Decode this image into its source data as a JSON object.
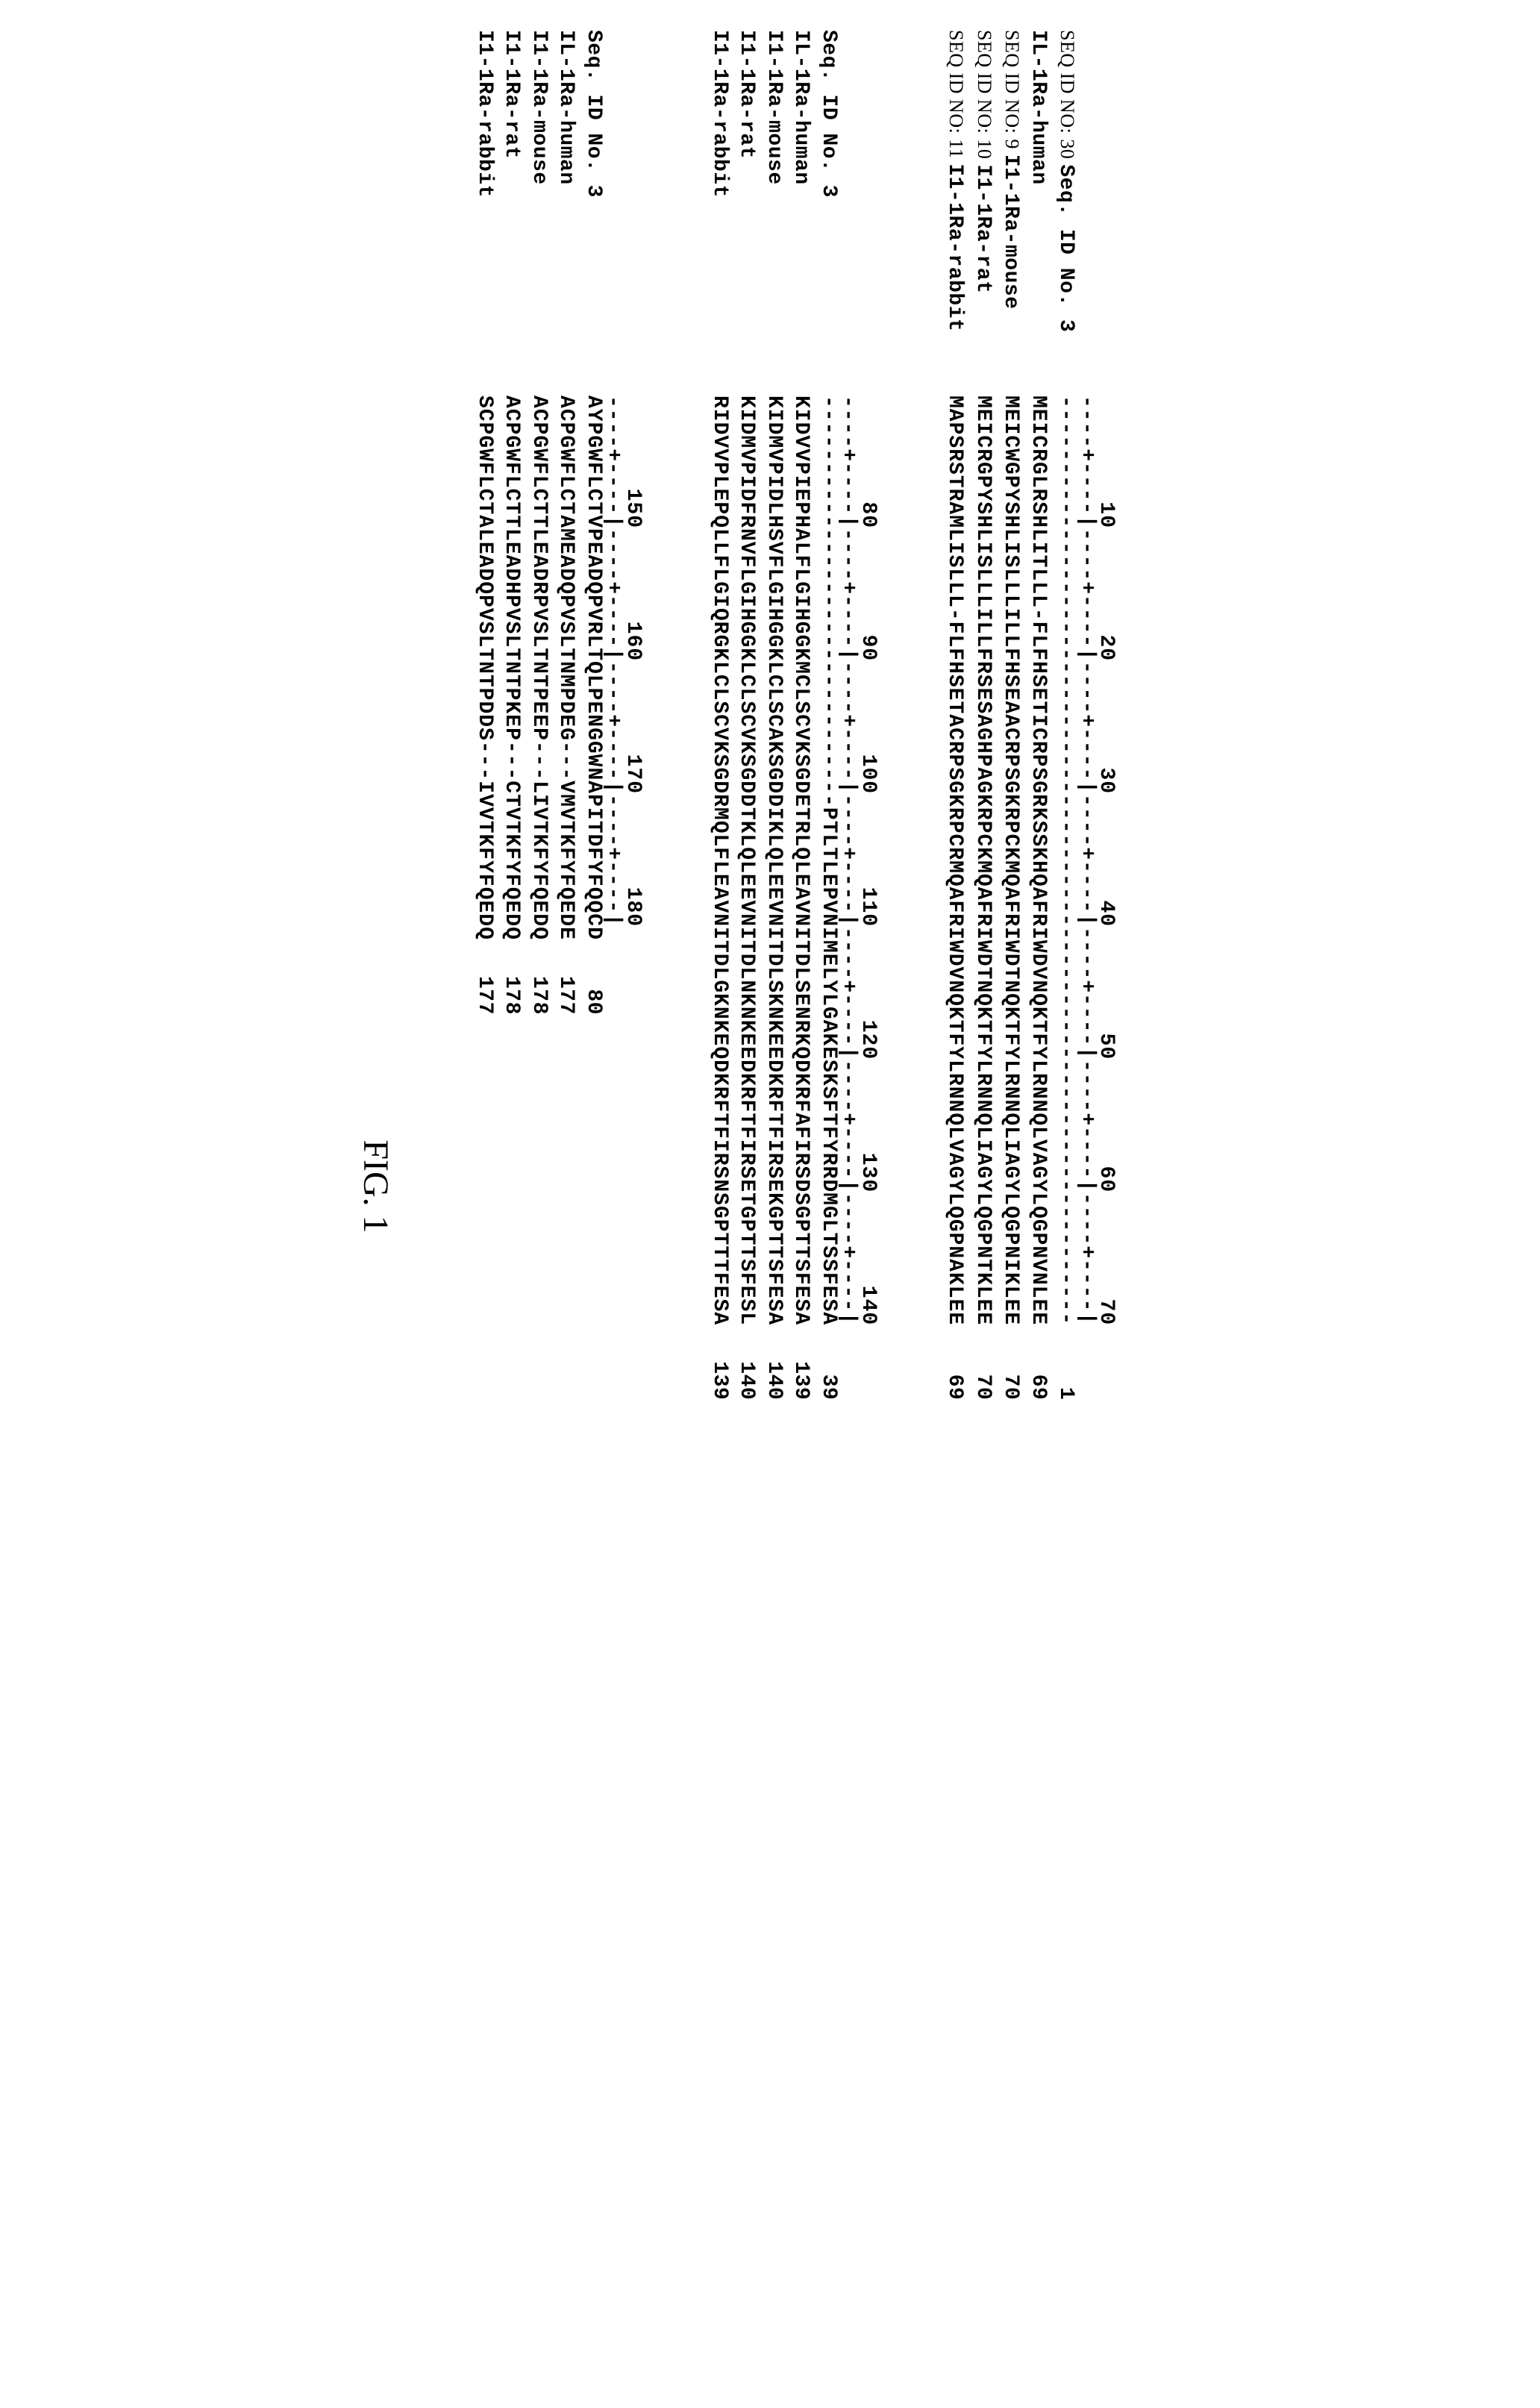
{
  "figure_label": "FIG. 1",
  "blocks": [
    {
      "ruler_numbers": "        10        20        30        40        50        60        70",
      "ruler_ticks": "----+----|----+----|----+----|----+----|----+----|----+----|----+----|",
      "rows": [
        {
          "label_prefix": "SEQ ID NO: 30",
          "label": "Seq. ID No. 3",
          "seq": "----------------------------------------------------------------------",
          "end": "1"
        },
        {
          "label_prefix": "",
          "label": "IL-1Ra-human",
          "seq": "MEICRGLRSHLITLLL-FLFHSETICRPSGRKSSKHQAFRIWDVNQKTFYLRNNQLVAGYLQGPNVNLEE",
          "end": "69"
        },
        {
          "label_prefix": "SEQ ID NO: 9",
          "label": "I1-1Ra-mouse",
          "seq": "MEICWGPYSHLISLLLILLFHSEAACRPSGKRPCKMQAFRIWDTNQKTFYLRNNQLIAGYLQGPNIKLEE",
          "end": "70"
        },
        {
          "label_prefix": "SEQ ID NO: 10",
          "label": "I1-1Ra-rat",
          "seq": "MEICRGPYSHLISLLLILLFRSESAGHPAGKRPCKMQAFRIWDTNQKTFYLRNNQLIAGYLQGPNTKLEE",
          "end": "70"
        },
        {
          "label_prefix": "SEQ ID NO: 11",
          "label": "I1-1Ra-rabbit",
          "seq": "MAPSRSTRAMLISLLL-FLFHSETACRPSGKRPCRMQAFRIWDVNQKTFYLRNNQLVAGYLQGPNAKLEE",
          "end": "69"
        }
      ]
    },
    {
      "ruler_numbers": "        80        90       100       110       120       130       140",
      "ruler_ticks": "----+----|----+----|----+----|----+----|----+----|----+----|----+----|",
      "rows": [
        {
          "label_prefix": "",
          "label": "Seq. ID No. 3",
          "seq": "-------------------------------PTLTLEPVNIMELYLGAKESKSFTFYRRDMGLTSSFESA",
          "end": "39"
        },
        {
          "label_prefix": "",
          "label": "IL-1Ra-human",
          "seq": "KIDVVPIEPHALFLGIHGGKMCLSCVKSGDETRLQLEAVNITDLSENRKQDKRFAFIRSDSGPTTSFESA",
          "end": "139"
        },
        {
          "label_prefix": "",
          "label": "I1-1Ra-mouse",
          "seq": "KIDMVPIDLHSVFLGIHGGKLCLSCAKSGDDIKLQLEEVNITDLSKNKEEDKRFTFIRSEKGPTTSFESA",
          "end": "140"
        },
        {
          "label_prefix": "",
          "label": "I1-1Ra-rat",
          "seq": "KIDMVPIDFRNVFLGIHGGKLCLSCVKSGDDTKLQLEEVNITDLNKNKEEDKRFTFIRSETGPTTSFESL",
          "end": "140"
        },
        {
          "label_prefix": "",
          "label": "I1-1Ra-rabbit",
          "seq": "RIDVVPLEPQLLFLGIQRGKLCLSCVKSGDRMQLFLEAVNITDLGKNKEQDKRFTFIRSNSGPTTTFESA",
          "end": "139"
        }
      ]
    },
    {
      "ruler_numbers": "       150       160       170       180",
      "ruler_ticks": "----+----|----+----|----+----|----+----|",
      "rows": [
        {
          "label_prefix": "",
          "label": "Seq. ID No. 3",
          "seq": "AYPGWFLCTVPEADQPVRLTQLPENGGWNAPITDFYFQQCD",
          "end": "80"
        },
        {
          "label_prefix": "",
          "label": "IL-1Ra-human",
          "seq": "ACPGWFLCTAMEADQPVSLTNMPDEG---VMVTKFYFQEDE",
          "end": "177"
        },
        {
          "label_prefix": "",
          "label": "I1-1Ra-mouse",
          "seq": "ACPGWFLCTTLEADRPVSLTNTPEEP---LIVTKFYFQEDQ",
          "end": "178"
        },
        {
          "label_prefix": "",
          "label": "I1-1Ra-rat",
          "seq": "ACPGWFLCTTLEADHPVSLTNTPKEP---CTVTKFYFQEDQ",
          "end": "178"
        },
        {
          "label_prefix": "",
          "label": "I1-1Ra-rabbit",
          "seq": "SCPGWFLCTALEADQPVSLTNTPDDS---IVVTKFYFQEDQ",
          "end": "177"
        }
      ]
    }
  ],
  "styling": {
    "font_family": "Courier New",
    "font_size_seq": 28,
    "font_size_fig": 48,
    "background": "#ffffff",
    "text_color": "#000000",
    "label_col_width": 480,
    "rotation": 90
  }
}
